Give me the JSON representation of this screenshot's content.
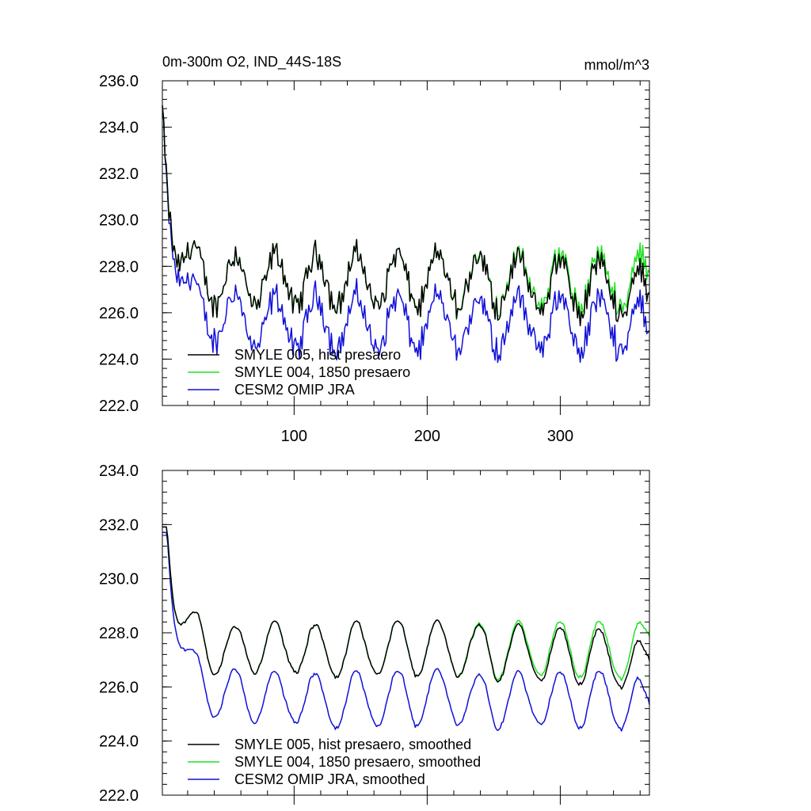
{
  "colors": {
    "black": "#000000",
    "green": "#22e022",
    "blue": "#1010d8"
  },
  "chart_data": [
    {
      "type": "line",
      "title": "0m-300m O2, IND_44S-18S",
      "units": "mmol/m^3",
      "xlabel": "",
      "ylabel": "",
      "xlim": [
        1,
        367
      ],
      "ylim": [
        222.0,
        236.0
      ],
      "yticks": [
        "222.0",
        "224.0",
        "226.0",
        "228.0",
        "230.0",
        "232.0",
        "234.0",
        "236.0"
      ],
      "xticks": [
        "100",
        "200",
        "300"
      ],
      "legend_position": "bottom-left",
      "series": [
        {
          "name": "SMYLE 005, hist presaero",
          "color_key": "black"
        },
        {
          "name": "SMYLE 004, 1850 presaero",
          "color_key": "green"
        },
        {
          "name": "CESM2 OMIP JRA",
          "color_key": "blue"
        }
      ]
    },
    {
      "type": "line",
      "title": "",
      "xlabel": "",
      "ylabel": "",
      "xlim": [
        1,
        367
      ],
      "ylim": [
        222.0,
        234.0
      ],
      "yticks": [
        "222.0",
        "224.0",
        "226.0",
        "228.0",
        "230.0",
        "232.0",
        "234.0"
      ],
      "xticks": [],
      "legend_position": "bottom-left",
      "series": [
        {
          "name": "SMYLE 005, hist presaero, smoothed",
          "color_key": "black"
        },
        {
          "name": "SMYLE 004, 1850 presaero, smoothed",
          "color_key": "green"
        },
        {
          "name": "CESM2 OMIP JRA, smoothed",
          "color_key": "blue"
        }
      ]
    }
  ]
}
